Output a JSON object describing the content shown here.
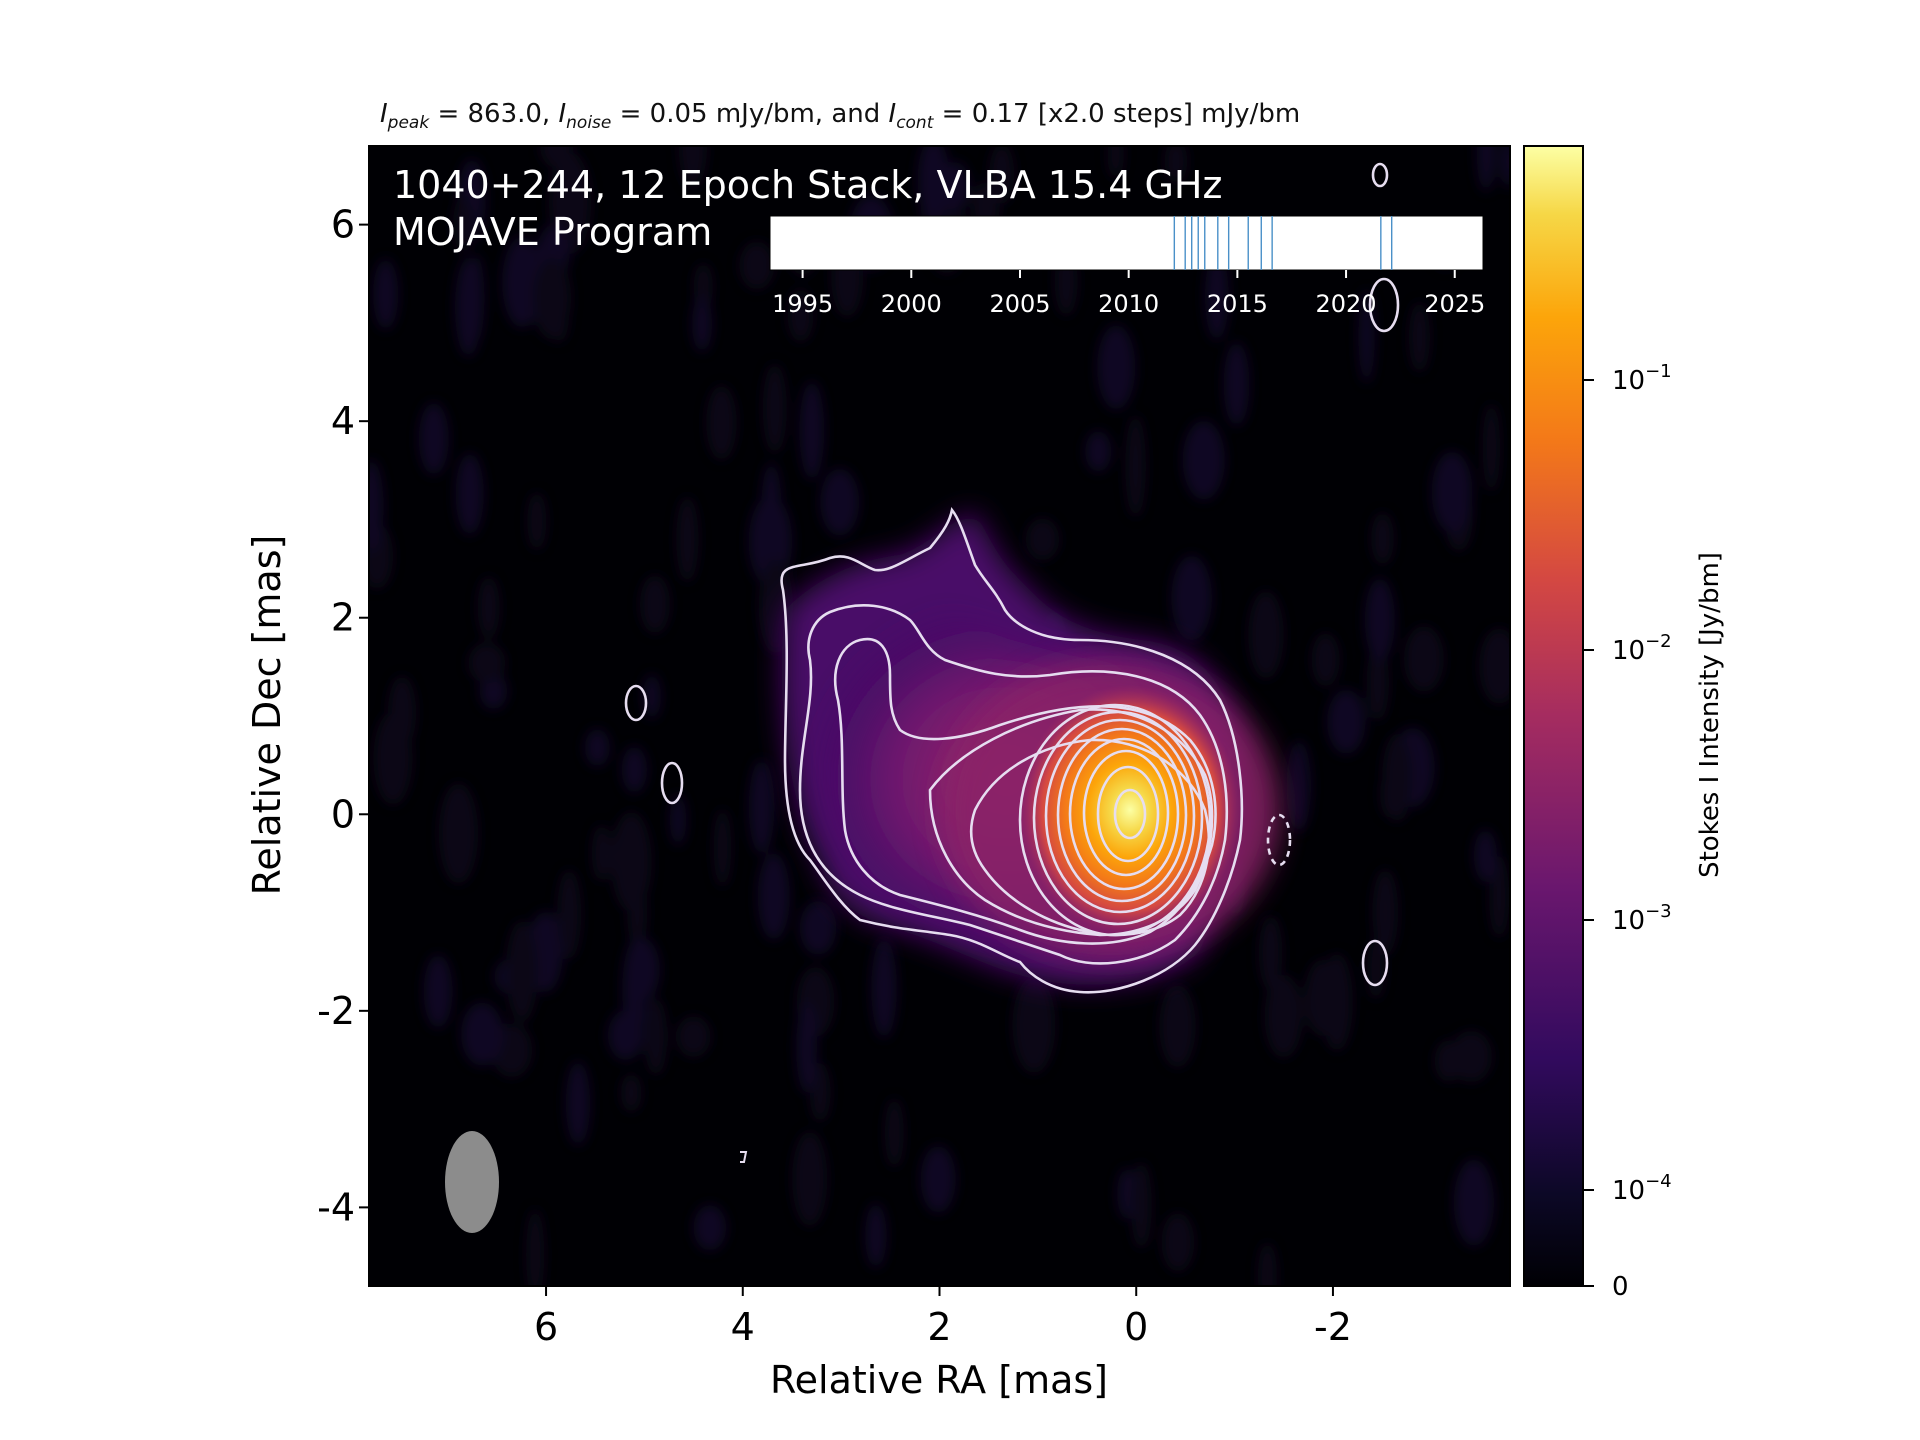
{
  "header": {
    "peak_symbol": "I",
    "peak_sub": "peak",
    "peak_text": " = 863.0, ",
    "noise_symbol": "I",
    "noise_sub": "noise",
    "noise_text": " = 0.05 mJy/bm, and ",
    "cont_symbol": "I",
    "cont_sub": "cont",
    "cont_text": " = 0.17 [x2.0 steps] mJy/bm"
  },
  "chart_data": {
    "type": "heatmap",
    "overlay": {
      "line1": "1040+244, 12 Epoch Stack, VLBA 15.4 GHz",
      "line2": "MOJAVE Program"
    },
    "xlabel": "Relative RA [mas]",
    "ylabel": "Relative Dec [mas]",
    "x_reversed": true,
    "xlim": [
      7.8,
      -3.8
    ],
    "ylim": [
      -4.8,
      6.8
    ],
    "xticks": [
      6,
      4,
      2,
      0,
      -2
    ],
    "xtick_labels": [
      "6",
      "4",
      "2",
      "0",
      "-2"
    ],
    "yticks": [
      6,
      4,
      2,
      0,
      -2,
      -4
    ],
    "ytick_labels": [
      "6",
      "4",
      "2",
      "0",
      "-2",
      "-4"
    ],
    "colorbar": {
      "label": "Stokes I Intensity [Jy/bm]",
      "scale": "log",
      "colormap": "inferno",
      "ticks": [
        {
          "label": "10",
          "exp": "−1",
          "value": 0.1
        },
        {
          "label": "10",
          "exp": "−2",
          "value": 0.01
        },
        {
          "label": "10",
          "exp": "−3",
          "value": 0.001
        },
        {
          "label": "10",
          "exp": "−4",
          "value": 0.0001
        },
        {
          "label": "0",
          "exp": "",
          "value": 0
        }
      ]
    },
    "peak_position": [
      0,
      0
    ],
    "beam": {
      "ra": 6.8,
      "dec": -3.8,
      "major_mas": 1.0,
      "minor_mas": 0.55,
      "pa_deg": 0
    },
    "contour_levels_count": 12,
    "epoch_timeline": {
      "xlim": [
        1993.5,
        2026.3
      ],
      "ticks": [
        1995,
        2000,
        2005,
        2010,
        2015,
        2020,
        2025
      ],
      "tick_labels": [
        "1995",
        "2000",
        "2005",
        "2010",
        "2015",
        "2020",
        "2025"
      ],
      "epochs": [
        2012.1,
        2012.6,
        2012.9,
        2013.2,
        2013.5,
        2014.1,
        2014.6,
        2015.5,
        2016.1,
        2016.6,
        2021.6,
        2022.1
      ]
    },
    "colors": {
      "contour": "#e6ddf0",
      "epoch_line": "#4a90c8",
      "beam": "#8c8c8c",
      "background": "#000004"
    }
  }
}
